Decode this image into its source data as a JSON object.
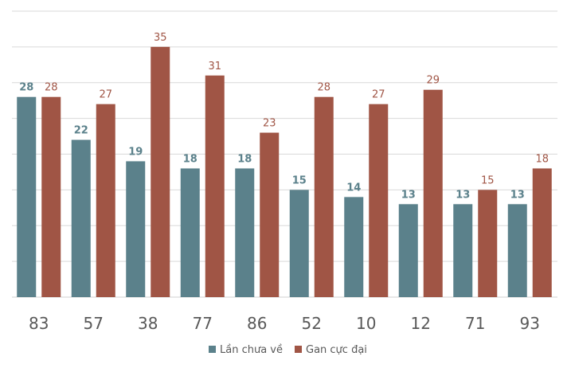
{
  "chart_data": {
    "type": "bar",
    "title": "",
    "xlabel": "",
    "ylabel": "",
    "ylim": [
      0,
      40
    ],
    "grid": true,
    "legend_position": "bottom",
    "categories": [
      "83",
      "57",
      "38",
      "77",
      "86",
      "52",
      "10",
      "12",
      "71",
      "93"
    ],
    "series": [
      {
        "name": "Lần chưa về",
        "color": "#5b818b",
        "values": [
          28,
          22,
          19,
          18,
          18,
          15,
          14,
          13,
          13,
          13
        ]
      },
      {
        "name": "Gan cực đại",
        "color": "#a05545",
        "values": [
          28,
          27,
          35,
          31,
          23,
          28,
          27,
          29,
          15,
          18
        ]
      }
    ]
  }
}
